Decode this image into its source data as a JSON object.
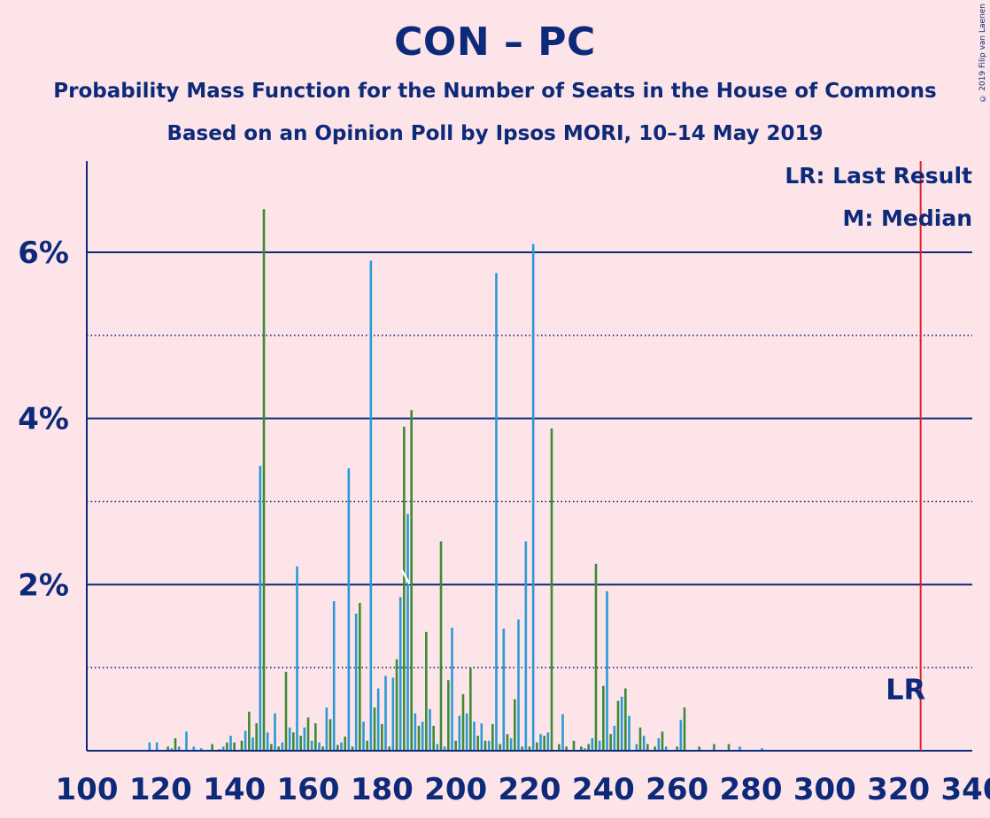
{
  "title": "CON – PC",
  "subtitle1": "Probability Mass Function for the Number of Seats in the House of Commons",
  "subtitle2": "Based on an Opinion Poll by Ipsos MORI, 10–14 May 2019",
  "copyright": "© 2019 Filip van Laenen",
  "legend": {
    "lr": "LR: Last Result",
    "m": "M: Median"
  },
  "lr_label": "LR",
  "colors": {
    "background": "#fde4e8",
    "text": "#0d2a7a",
    "bar_blue": "#2a9ad6",
    "bar_green": "#3f8a34",
    "last_result": "#e0202a"
  },
  "chart_data": {
    "type": "bar",
    "xlim": [
      100,
      340
    ],
    "ylim": [
      0,
      7.1
    ],
    "x_ticks": [
      100,
      120,
      140,
      160,
      180,
      200,
      220,
      240,
      260,
      280,
      300,
      320,
      340
    ],
    "y_ticks": [
      {
        "value": 2,
        "label": "2%"
      },
      {
        "value": 4,
        "label": "4%"
      },
      {
        "value": 6,
        "label": "6%"
      }
    ],
    "y_minor_gridlines": [
      1,
      3,
      5
    ],
    "grid": true,
    "last_result": 326,
    "median": 187,
    "x": [
      117,
      119,
      122,
      123,
      124,
      125,
      127,
      129,
      131,
      134,
      136,
      137,
      138,
      139,
      140,
      142,
      143,
      144,
      145,
      146,
      147,
      148,
      149,
      150,
      151,
      152,
      153,
      154,
      155,
      156,
      157,
      158,
      159,
      160,
      161,
      162,
      163,
      164,
      165,
      166,
      167,
      168,
      169,
      170,
      171,
      172,
      173,
      174,
      175,
      176,
      177,
      178,
      179,
      180,
      181,
      182,
      183,
      184,
      185,
      186,
      187,
      188,
      189,
      190,
      191,
      192,
      193,
      194,
      195,
      196,
      197,
      198,
      199,
      200,
      201,
      202,
      203,
      204,
      205,
      206,
      207,
      208,
      209,
      210,
      211,
      212,
      213,
      214,
      215,
      216,
      217,
      218,
      219,
      220,
      221,
      222,
      223,
      224,
      225,
      226,
      228,
      229,
      230,
      232,
      234,
      235,
      236,
      237,
      238,
      239,
      240,
      241,
      242,
      243,
      244,
      245,
      246,
      247,
      249,
      250,
      251,
      252,
      254,
      255,
      256,
      257,
      260,
      261,
      262,
      266,
      270,
      274,
      277,
      283
    ],
    "y": [
      0.1,
      0.1,
      0.05,
      0.03,
      0.15,
      0.05,
      0.23,
      0.05,
      0.03,
      0.08,
      0.02,
      0.05,
      0.1,
      0.18,
      0.1,
      0.12,
      0.24,
      0.47,
      0.16,
      0.33,
      3.43,
      6.52,
      0.22,
      0.08,
      0.45,
      0.05,
      0.1,
      0.95,
      0.28,
      0.22,
      2.22,
      0.18,
      0.28,
      0.4,
      0.12,
      0.33,
      0.1,
      0.05,
      0.52,
      0.38,
      1.8,
      0.07,
      0.1,
      0.17,
      3.4,
      0.05,
      1.65,
      1.78,
      0.35,
      0.12,
      5.9,
      0.52,
      0.75,
      0.32,
      0.9,
      0.05,
      0.88,
      1.1,
      1.85,
      3.9,
      2.85,
      4.1,
      0.45,
      0.3,
      0.35,
      1.43,
      0.5,
      0.3,
      0.08,
      2.52,
      0.05,
      0.85,
      1.48,
      0.12,
      0.42,
      0.68,
      0.45,
      1.0,
      0.35,
      0.18,
      0.33,
      0.12,
      0.12,
      0.32,
      5.75,
      0.08,
      1.47,
      0.2,
      0.15,
      0.62,
      1.58,
      0.05,
      2.52,
      0.05,
      6.1,
      0.1,
      0.2,
      0.18,
      0.22,
      3.88,
      0.08,
      0.44,
      0.05,
      0.12,
      0.05,
      0.03,
      0.08,
      0.15,
      2.25,
      0.12,
      0.78,
      1.92,
      0.2,
      0.3,
      0.6,
      0.65,
      0.75,
      0.42,
      0.08,
      0.28,
      0.18,
      0.08,
      0.05,
      0.15,
      0.23,
      0.05,
      0.05,
      0.37,
      0.52,
      0.05,
      0.08,
      0.08,
      0.05,
      0.03
    ]
  }
}
